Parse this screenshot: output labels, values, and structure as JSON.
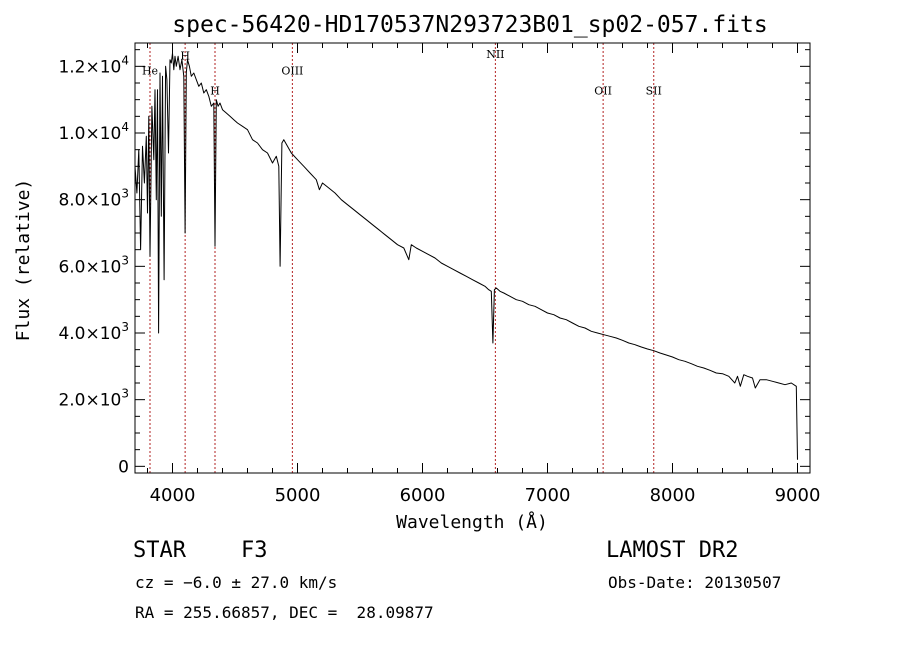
{
  "chart_data": {
    "type": "line",
    "title": "spec-56420-HD170537N293723B01_sp02-057.fits",
    "xlabel": "Wavelength (Å)",
    "ylabel": "Flux (relative)",
    "xlim": [
      3700,
      9100
    ],
    "ylim": [
      -200,
      12700
    ],
    "x_ticks": [
      4000,
      5000,
      6000,
      7000,
      8000,
      9000
    ],
    "x_tick_labels": [
      "4000",
      "5000",
      "6000",
      "7000",
      "8000",
      "9000"
    ],
    "y_ticks": [
      {
        "value": 0,
        "mantissa": "0",
        "exp": ""
      },
      {
        "value": 2000,
        "mantissa": "2.0×10",
        "exp": "3"
      },
      {
        "value": 4000,
        "mantissa": "4.0×10",
        "exp": "3"
      },
      {
        "value": 6000,
        "mantissa": "6.0×10",
        "exp": "3"
      },
      {
        "value": 8000,
        "mantissa": "8.0×10",
        "exp": "3"
      },
      {
        "value": 10000,
        "mantissa": "1.0×10",
        "exp": "4"
      },
      {
        "value": 12000,
        "mantissa": "1.2×10",
        "exp": "4"
      }
    ],
    "grid": false,
    "series": [
      {
        "color": "#000000",
        "x": [
          3700,
          3715,
          3730,
          3745,
          3760,
          3775,
          3790,
          3800,
          3810,
          3820,
          3835,
          3850,
          3860,
          3870,
          3880,
          3889,
          3900,
          3910,
          3920,
          3933,
          3945,
          3955,
          3968,
          3980,
          3990,
          4000,
          4010,
          4020,
          4030,
          4045,
          4060,
          4075,
          4090,
          4101,
          4110,
          4120,
          4135,
          4150,
          4170,
          4190,
          4210,
          4230,
          4250,
          4270,
          4290,
          4310,
          4330,
          4340,
          4350,
          4365,
          4380,
          4400,
          4430,
          4460,
          4490,
          4520,
          4560,
          4600,
          4640,
          4680,
          4720,
          4760,
          4800,
          4830,
          4850,
          4861,
          4875,
          4890,
          4920,
          4950,
          5000,
          5050,
          5100,
          5150,
          5175,
          5200,
          5250,
          5300,
          5350,
          5400,
          5450,
          5500,
          5550,
          5600,
          5650,
          5700,
          5750,
          5800,
          5850,
          5890,
          5910,
          5950,
          6000,
          6050,
          6100,
          6150,
          6200,
          6250,
          6300,
          6350,
          6400,
          6450,
          6500,
          6530,
          6550,
          6563,
          6575,
          6590,
          6620,
          6650,
          6700,
          6750,
          6800,
          6850,
          6900,
          6950,
          7000,
          7050,
          7100,
          7150,
          7200,
          7250,
          7300,
          7350,
          7400,
          7450,
          7500,
          7550,
          7600,
          7650,
          7700,
          7750,
          7800,
          7850,
          7900,
          7950,
          8000,
          8050,
          8100,
          8150,
          8200,
          8250,
          8300,
          8350,
          8400,
          8450,
          8498,
          8520,
          8542,
          8570,
          8600,
          8640,
          8662,
          8700,
          8750,
          8800,
          8850,
          8900,
          8950,
          8990,
          9000
        ],
        "y": [
          9000,
          8200,
          9500,
          6500,
          9600,
          8500,
          9900,
          7600,
          10500,
          6300,
          10800,
          9200,
          11300,
          8000,
          11300,
          4000,
          11800,
          7500,
          11700,
          5600,
          12000,
          11600,
          9400,
          12200,
          12100,
          12400,
          11900,
          12300,
          12000,
          12300,
          11900,
          12200,
          11700,
          7000,
          11800,
          12200,
          12000,
          11700,
          11800,
          11600,
          11400,
          11500,
          11200,
          11300,
          11100,
          10800,
          10900,
          6600,
          11000,
          10800,
          10900,
          10700,
          10600,
          10500,
          10400,
          10300,
          10200,
          10100,
          9800,
          9700,
          9500,
          9400,
          9100,
          9300,
          9000,
          6000,
          9700,
          9800,
          9600,
          9400,
          9200,
          9000,
          8800,
          8600,
          8300,
          8500,
          8350,
          8200,
          8000,
          7850,
          7700,
          7550,
          7400,
          7250,
          7100,
          6950,
          6800,
          6650,
          6550,
          6200,
          6650,
          6550,
          6450,
          6350,
          6250,
          6100,
          6000,
          5900,
          5800,
          5700,
          5600,
          5500,
          5400,
          5300,
          5250,
          3700,
          5300,
          5350,
          5250,
          5200,
          5100,
          5000,
          4950,
          4850,
          4800,
          4700,
          4600,
          4550,
          4450,
          4400,
          4300,
          4200,
          4150,
          4050,
          4000,
          3950,
          3900,
          3850,
          3780,
          3700,
          3650,
          3580,
          3520,
          3470,
          3400,
          3340,
          3280,
          3200,
          3150,
          3080,
          3000,
          2950,
          2880,
          2800,
          2780,
          2700,
          2500,
          2700,
          2400,
          2750,
          2700,
          2650,
          2350,
          2600,
          2600,
          2550,
          2500,
          2450,
          2500,
          2400,
          200
        ]
      }
    ],
    "line_markers": [
      {
        "label": "He",
        "x": 3820,
        "label_y": 11750
      },
      {
        "label": "H",
        "x": 4101,
        "label_y": 12200
      },
      {
        "label": "H",
        "x": 4340,
        "label_y": 11150
      },
      {
        "label": "OIII",
        "x": 4959,
        "label_y": 11750
      },
      {
        "label": "NII",
        "x": 6583,
        "label_y": 12250
      },
      {
        "label": "OII",
        "x": 7445,
        "label_y": 11150
      },
      {
        "label": "SII",
        "x": 7850,
        "label_y": 11150
      }
    ],
    "marker_color": "#b22222"
  },
  "info": {
    "object_type": "STAR",
    "subclass": "F3",
    "survey": "LAMOST DR2",
    "cz": "cz = −6.0 ± 27.0 km/s",
    "obs_date": "Obs-Date: 20130507",
    "coords": "RA = 255.66857, DEC =  28.09877"
  }
}
